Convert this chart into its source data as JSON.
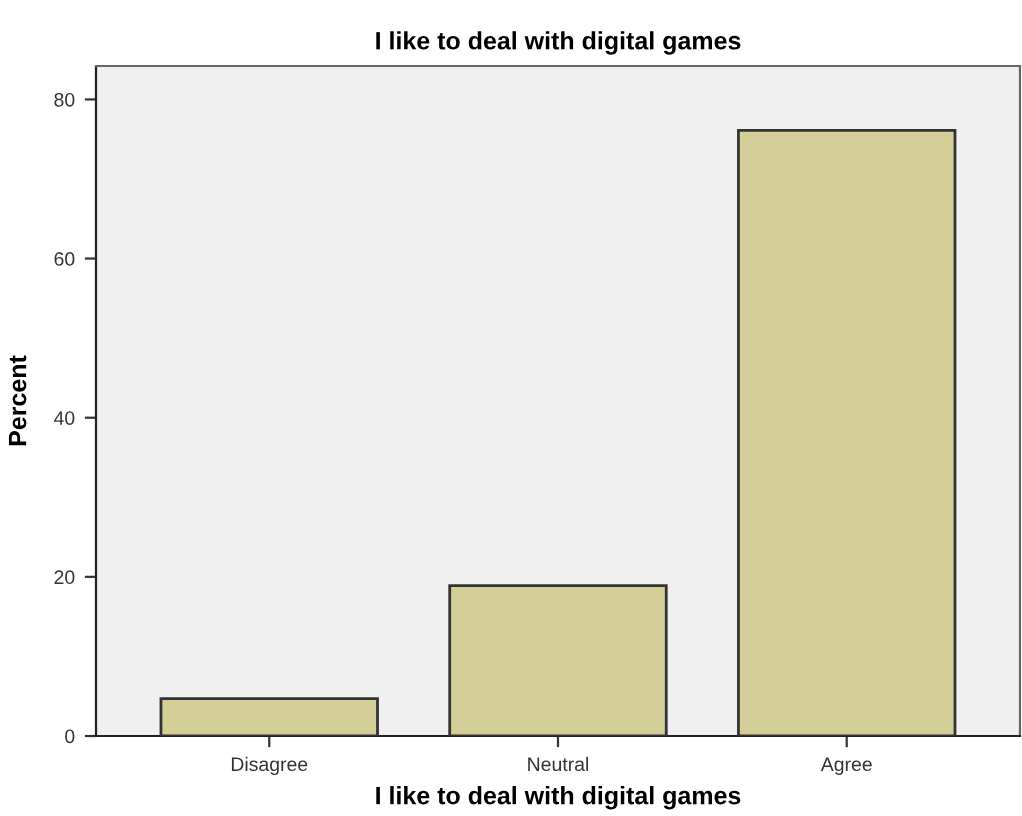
{
  "chart_data": {
    "type": "bar",
    "title": "I like to deal with digital games",
    "xlabel": "I like to deal with digital games",
    "ylabel": "Percent",
    "categories": [
      "Disagree",
      "Neutral",
      "Agree"
    ],
    "values": [
      4.7,
      18.9,
      76.1
    ],
    "color": "#d3ce97",
    "ylim": [
      0,
      84.2
    ],
    "yticks": [
      0,
      20,
      40,
      60,
      80
    ],
    "grid": false
  }
}
